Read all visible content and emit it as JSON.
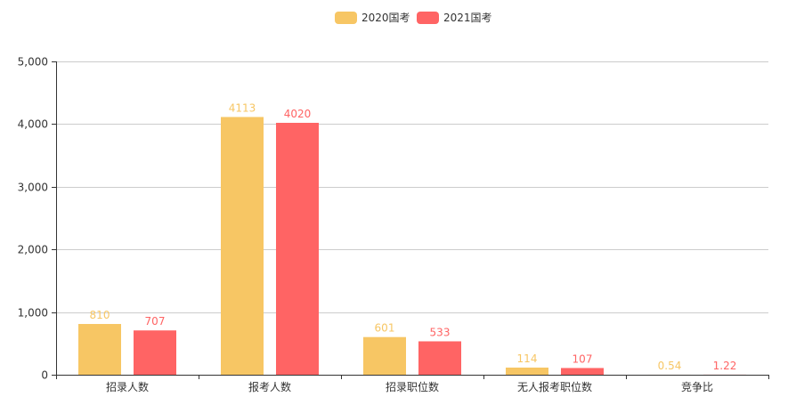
{
  "chart_data": {
    "type": "bar",
    "categories": [
      "招录人数",
      "报考人数",
      "招录职位数",
      "无人报考职位数",
      "竞争比"
    ],
    "series": [
      {
        "name": "2020国考",
        "color": "#f7c664",
        "values": [
          810,
          4113,
          601,
          114,
          0.54
        ],
        "labels": [
          "810",
          "4113",
          "601",
          "114",
          "0.54"
        ]
      },
      {
        "name": "2021国考",
        "color": "#ff6464",
        "values": [
          707,
          4020,
          533,
          107,
          1.22
        ],
        "labels": [
          "707",
          "4020",
          "533",
          "107",
          "1.22"
        ]
      }
    ],
    "yticks": [
      "0",
      "1,000",
      "2,000",
      "3,000",
      "4,000",
      "5,000"
    ],
    "ylim": [
      0,
      5000
    ],
    "grid": true,
    "legend": "top-center",
    "title": "",
    "xlabel": "",
    "ylabel": ""
  }
}
